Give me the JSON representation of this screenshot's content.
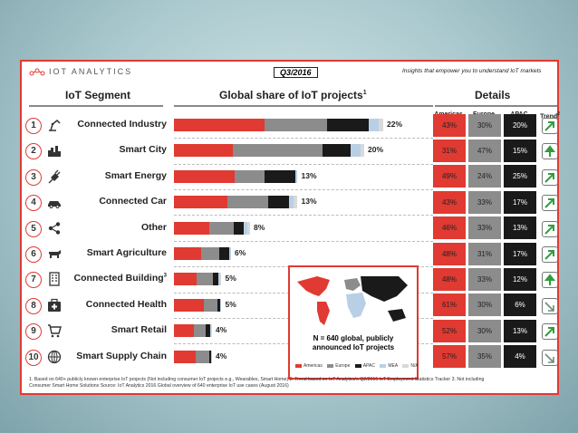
{
  "brand": {
    "name": "IOT ANALYTICS"
  },
  "period": "Q3/2016",
  "tagline": "Insights that empower you to understand IoT markets",
  "headers": {
    "segment": "IoT Segment",
    "share": "Global share of IoT projects",
    "share_sup": "1",
    "details": "Details",
    "americas": "Americas",
    "europe": "Europe",
    "apac": "APAC",
    "trend": "Trend",
    "trend_sup": "2"
  },
  "colors": {
    "americas": "#e03a32",
    "europe": "#8c8c8c",
    "apac": "#1a1a1a",
    "mea": "#b9cfe6",
    "na": "#d9d9d9"
  },
  "chart_data": {
    "type": "bar",
    "stacked": true,
    "orientation": "horizontal",
    "categories": [
      "Connected Industry",
      "Smart City",
      "Smart Energy",
      "Connected Car",
      "Other",
      "Smart Agriculture",
      "Connected Building",
      "Connected Health",
      "Smart Retail",
      "Smart Supply Chain"
    ],
    "ranks": [
      "1",
      "2",
      "3",
      "4",
      "5",
      "6",
      "7",
      "8",
      "9",
      "10"
    ],
    "category_sups": [
      "",
      "",
      "",
      "",
      "",
      "",
      "3",
      "",
      "",
      ""
    ],
    "icons": [
      "robot-arm-icon",
      "city-skyline-icon",
      "power-plug-icon",
      "car-icon",
      "share-icon",
      "cow-icon",
      "building-icon",
      "medical-kit-icon",
      "shopping-cart-icon",
      "globe-icon"
    ],
    "total_labels": [
      "22%",
      "20%",
      "13%",
      "13%",
      "8%",
      "6%",
      "5%",
      "5%",
      "4%",
      "4%"
    ],
    "totals": [
      22,
      20,
      13,
      13,
      8,
      6,
      5,
      5,
      4,
      4
    ],
    "series": [
      {
        "name": "Americas",
        "values": [
          9.5,
          6.2,
          6.4,
          5.6,
          3.7,
          2.9,
          2.4,
          3.1,
          2.1,
          2.3
        ]
      },
      {
        "name": "Europe",
        "values": [
          6.6,
          9.4,
          3.1,
          4.3,
          2.6,
          1.9,
          1.7,
          1.5,
          1.2,
          1.4
        ]
      },
      {
        "name": "APAC",
        "values": [
          4.4,
          3.0,
          3.3,
          2.2,
          1.0,
          1.0,
          0.6,
          0.3,
          0.5,
          0.2
        ]
      },
      {
        "name": "MEA",
        "values": [
          1.0,
          1.0,
          0.2,
          0.5,
          0.4,
          0.2,
          0.2,
          0.1,
          0.1,
          0.1
        ]
      },
      {
        "name": "N/A",
        "values": [
          0.5,
          0.4,
          0.0,
          0.4,
          0.3,
          0.0,
          0.1,
          0.0,
          0.1,
          0.0
        ]
      }
    ],
    "legend": [
      "Americas",
      "Europe",
      "APAC",
      "MEA",
      "N/A"
    ],
    "xlim": [
      0,
      24
    ]
  },
  "details": {
    "americas": [
      "43%",
      "31%",
      "49%",
      "43%",
      "46%",
      "48%",
      "48%",
      "61%",
      "52%",
      "57%"
    ],
    "europe": [
      "30%",
      "47%",
      "24%",
      "33%",
      "33%",
      "31%",
      "33%",
      "30%",
      "30%",
      "35%"
    ],
    "apac": [
      "20%",
      "15%",
      "25%",
      "17%",
      "13%",
      "17%",
      "12%",
      "6%",
      "13%",
      "4%"
    ],
    "trend": [
      "up-right",
      "up",
      "up-right",
      "up-right",
      "up-right",
      "up-right",
      "up",
      "down-right",
      "up-right",
      "down-right"
    ]
  },
  "map": {
    "line1": "N = 640 global, publicly",
    "line2": "announced IoT projects",
    "legend": [
      "Americas",
      "Europe",
      "APAC",
      "MEA",
      "N/A"
    ]
  },
  "footnote1": "1. Based on 640+ publicly known enterprise IoT projects (Not including consumer IoT projects e.g., Wearables, Smart Home) 2. Trend based on IoT Analytics's Q2/2016 IoT Employment Statistics Tracker 3. Not including",
  "footnote2": "Consumer Smart Home Solutions   Source: IoT Analytics 2016 Global overview of 640 enterprise IoT use cases (August 2016)"
}
